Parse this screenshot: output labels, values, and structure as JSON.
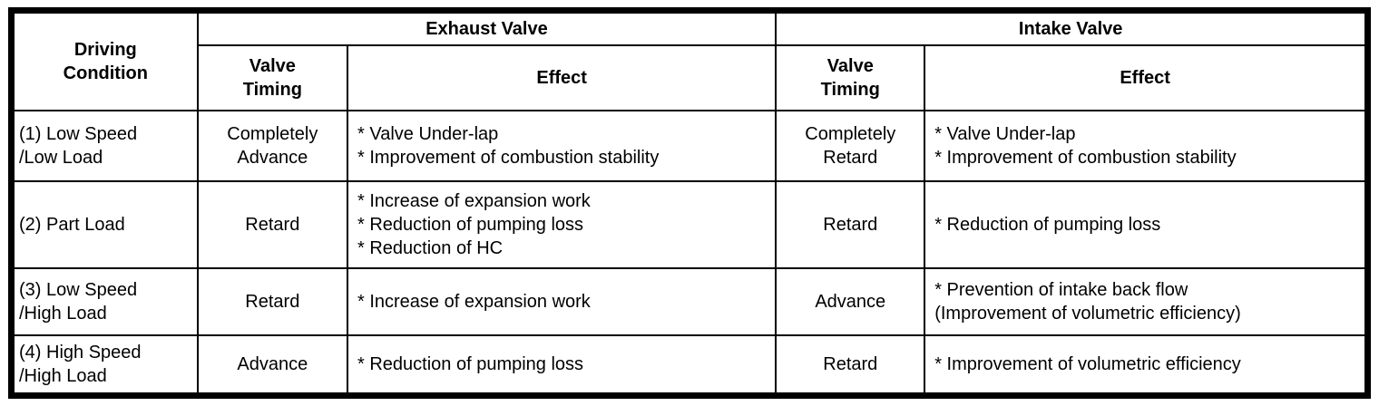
{
  "table": {
    "headers": {
      "driving_condition": "Driving\nCondition",
      "exhaust_valve": "Exhaust Valve",
      "intake_valve": "Intake Valve",
      "valve_timing": "Valve\nTiming",
      "effect": "Effect"
    },
    "rows": [
      {
        "condition": "(1) Low Speed\n/Low Load",
        "exhaust_timing": "Completely\nAdvance",
        "exhaust_effect": "* Valve Under-lap\n* Improvement of combustion stability",
        "intake_timing": "Completely\nRetard",
        "intake_effect": "* Valve Under-lap\n* Improvement of combustion stability"
      },
      {
        "condition": "(2) Part Load",
        "exhaust_timing": "Retard",
        "exhaust_effect": "* Increase of expansion work\n* Reduction of pumping loss\n* Reduction of HC",
        "intake_timing": "Retard",
        "intake_effect": "* Reduction of pumping loss"
      },
      {
        "condition": "(3) Low Speed\n/High Load",
        "exhaust_timing": "Retard",
        "exhaust_effect": "* Increase of expansion work",
        "intake_timing": "Advance",
        "intake_effect": "* Prevention of intake back flow\n(Improvement of volumetric efficiency)"
      },
      {
        "condition": "(4) High Speed\n/High Load",
        "exhaust_timing": "Advance",
        "exhaust_effect": "* Reduction of pumping loss",
        "intake_timing": "Retard",
        "intake_effect": "* Improvement of volumetric efficiency"
      }
    ]
  }
}
